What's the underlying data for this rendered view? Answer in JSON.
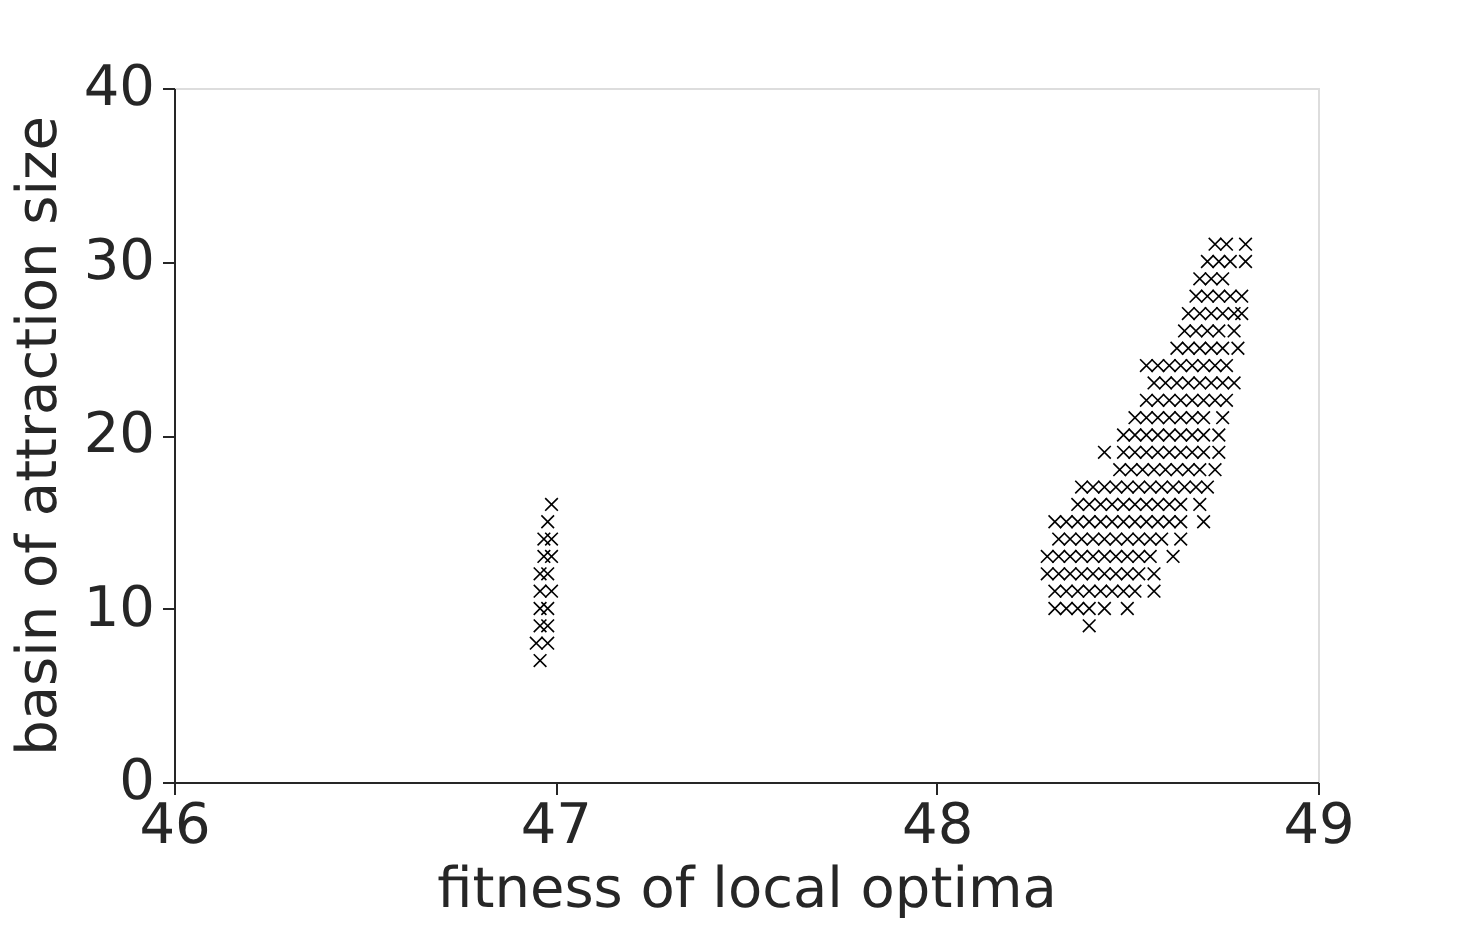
{
  "chart_data": {
    "type": "scatter",
    "xlabel": "fitness of local optima",
    "ylabel": "basin of attraction size",
    "xlim": [
      46,
      49
    ],
    "xticks": [
      46,
      47,
      48,
      49
    ],
    "ylim": [
      0,
      40
    ],
    "yticks": [
      0,
      10,
      20,
      30,
      40
    ],
    "grid": false,
    "legend": false,
    "marker": "cross",
    "series": [
      {
        "color": "#000000",
        "x": [
          46.99,
          46.98,
          46.97,
          46.99,
          46.97,
          46.99,
          46.96,
          46.98,
          46.96,
          46.99,
          46.96,
          46.98,
          46.96,
          46.98,
          46.95,
          46.98,
          46.96
        ],
        "values": [
          16,
          15,
          14,
          14,
          13,
          13,
          12,
          12,
          11,
          11,
          10,
          10,
          9,
          9,
          8,
          8,
          7
        ]
      },
      {
        "color": "#000000",
        "x": [
          48.73,
          48.76,
          48.81,
          48.71,
          48.74,
          48.77,
          48.81,
          48.69,
          48.72,
          48.75,
          48.68,
          48.71,
          48.74,
          48.77,
          48.8,
          48.66,
          48.69,
          48.72,
          48.75,
          48.78,
          48.8,
          48.65,
          48.68,
          48.71,
          48.74,
          48.78,
          48.63,
          48.66,
          48.69,
          48.72,
          48.75,
          48.79
        ],
        "values": [
          31,
          31,
          31,
          30,
          30,
          30,
          30,
          29,
          29,
          29,
          28,
          28,
          28,
          28,
          28,
          27,
          27,
          27,
          27,
          27,
          27,
          26,
          26,
          26,
          26,
          26,
          25,
          25,
          25,
          25,
          25,
          25
        ]
      },
      {
        "color": "#000000",
        "x": [
          48.55,
          48.58,
          48.61,
          48.64,
          48.67,
          48.7,
          48.73,
          48.76,
          48.57,
          48.6,
          48.63,
          48.66,
          48.69,
          48.72,
          48.75,
          48.78,
          48.55,
          48.58,
          48.61,
          48.64,
          48.67,
          48.7,
          48.73,
          48.76,
          48.52,
          48.55,
          48.58,
          48.61,
          48.64,
          48.67,
          48.7,
          48.75
        ],
        "values": [
          24,
          24,
          24,
          24,
          24,
          24,
          24,
          24,
          23,
          23,
          23,
          23,
          23,
          23,
          23,
          23,
          22,
          22,
          22,
          22,
          22,
          22,
          22,
          22,
          21,
          21,
          21,
          21,
          21,
          21,
          21,
          21
        ]
      },
      {
        "color": "#000000",
        "x": [
          48.49,
          48.52,
          48.55,
          48.58,
          48.61,
          48.64,
          48.67,
          48.7,
          48.74,
          48.44,
          48.49,
          48.52,
          48.55,
          48.58,
          48.61,
          48.64,
          48.67,
          48.7,
          48.74,
          48.48,
          48.51,
          48.54,
          48.57,
          48.6,
          48.63,
          48.66,
          48.69,
          48.73
        ],
        "values": [
          20,
          20,
          20,
          20,
          20,
          20,
          20,
          20,
          20,
          19,
          19,
          19,
          19,
          19,
          19,
          19,
          19,
          19,
          19,
          18,
          18,
          18,
          18,
          18,
          18,
          18,
          18,
          18
        ]
      },
      {
        "color": "#000000",
        "x": [
          48.38,
          48.41,
          48.44,
          48.47,
          48.5,
          48.53,
          48.56,
          48.59,
          48.62,
          48.65,
          48.68,
          48.71,
          48.37,
          48.4,
          48.43,
          48.46,
          48.49,
          48.52,
          48.55,
          48.58,
          48.61,
          48.64,
          48.69,
          48.31,
          48.34,
          48.37,
          48.4,
          48.43,
          48.46,
          48.49,
          48.52,
          48.55,
          48.58,
          48.61,
          48.64,
          48.7
        ],
        "values": [
          17,
          17,
          17,
          17,
          17,
          17,
          17,
          17,
          17,
          17,
          17,
          17,
          16,
          16,
          16,
          16,
          16,
          16,
          16,
          16,
          16,
          16,
          16,
          15,
          15,
          15,
          15,
          15,
          15,
          15,
          15,
          15,
          15,
          15,
          15,
          15
        ]
      },
      {
        "color": "#000000",
        "x": [
          48.32,
          48.35,
          48.38,
          48.41,
          48.44,
          48.47,
          48.5,
          48.53,
          48.56,
          48.59,
          48.64,
          48.29,
          48.32,
          48.35,
          48.38,
          48.41,
          48.44,
          48.47,
          48.5,
          48.53,
          48.56,
          48.62,
          48.29,
          48.32,
          48.35,
          48.38,
          48.41,
          48.44,
          48.47,
          48.5,
          48.53,
          48.57
        ],
        "values": [
          14,
          14,
          14,
          14,
          14,
          14,
          14,
          14,
          14,
          14,
          14,
          13,
          13,
          13,
          13,
          13,
          13,
          13,
          13,
          13,
          13,
          13,
          12,
          12,
          12,
          12,
          12,
          12,
          12,
          12,
          12,
          12
        ]
      },
      {
        "color": "#000000",
        "x": [
          48.31,
          48.34,
          48.37,
          48.4,
          48.43,
          48.46,
          48.49,
          48.52,
          48.57,
          48.31,
          48.34,
          48.37,
          48.4,
          48.44,
          48.5,
          48.4
        ],
        "values": [
          11,
          11,
          11,
          11,
          11,
          11,
          11,
          11,
          11,
          10,
          10,
          10,
          10,
          10,
          10,
          9
        ]
      }
    ]
  }
}
